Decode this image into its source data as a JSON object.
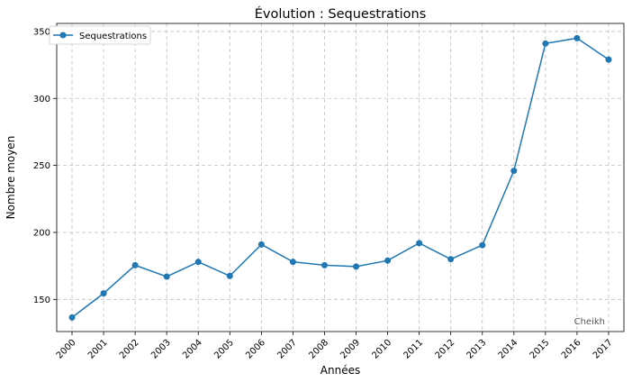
{
  "chart_data": {
    "type": "line",
    "title": "Évolution : Sequestrations",
    "xlabel": "Années",
    "ylabel": "Nombre moyen",
    "x": [
      "2000",
      "2001",
      "2002",
      "2003",
      "2004",
      "2005",
      "2006",
      "2007",
      "2008",
      "2009",
      "2010",
      "2011",
      "2012",
      "2013",
      "2014",
      "2015",
      "2016",
      "2017"
    ],
    "series": [
      {
        "name": "Sequestrations",
        "color": "#1f77b4",
        "marker": "circle",
        "values": [
          136.5,
          154.5,
          175.5,
          167,
          178,
          167.5,
          191,
          178,
          175.5,
          174.5,
          179,
          192,
          180,
          190.5,
          246,
          341,
          345,
          329
        ]
      }
    ],
    "ylim": [
      126,
      356
    ],
    "yticks": [
      150,
      200,
      250,
      300,
      350
    ],
    "grid": true,
    "legend": "top-left",
    "annotation": "Cheikh"
  }
}
